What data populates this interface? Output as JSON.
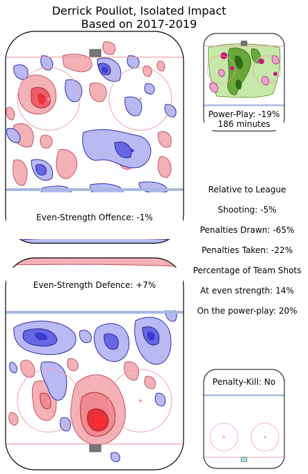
{
  "title": {
    "line1": "Derrick Pouliot, Isolated Impact",
    "line2": "Based on 2017-2019"
  },
  "power_play": {
    "label": "Power-Play: -19%",
    "minutes": "186 minutes"
  },
  "even_strength": {
    "offence_label": "Even-Strength Offence: -1%",
    "defence_label": "Even-Strength Defence: +7%"
  },
  "penalty_kill": {
    "label": "Penalty-Kill: No"
  },
  "relative_stats": {
    "heading": "Relative to League",
    "shooting": "Shooting: -5%",
    "penalties_drawn": "Penalties Drawn: -65%",
    "penalties_taken": "Penalties Taken: -22%",
    "team_shots_heading": "Percentage of Team Shots",
    "at_even_strength": "At even strength: 14%",
    "on_power_play": "On the power-play: 20%"
  },
  "colors": {
    "increase": "#e8303a",
    "decrease": "#3a3ad0",
    "pp_positive": "#2e6a12",
    "pp_negative": "#c8187a",
    "rink_line": "#f0a0a8",
    "blue_line": "#a9b8e0",
    "goal": "#777777"
  },
  "chart_data": {
    "type": "heatmap",
    "title": "Derrick Pouliot, Isolated Impact",
    "subtitle": "Based on 2017-2019",
    "panels": [
      {
        "name": "Even-Strength Offence",
        "impact_percent": -1
      },
      {
        "name": "Even-Strength Defence",
        "impact_percent": 7
      },
      {
        "name": "Power-Play",
        "impact_percent": -19,
        "minutes": 186
      },
      {
        "name": "Penalty-Kill",
        "impact_percent": null,
        "value": "No"
      }
    ],
    "relative_to_league_percent": {
      "Shooting": -5,
      "Penalties Drawn": -65,
      "Penalties Taken": -22
    },
    "percentage_of_team_shots": {
      "At even strength": 14,
      "On the power-play": 20
    }
  }
}
